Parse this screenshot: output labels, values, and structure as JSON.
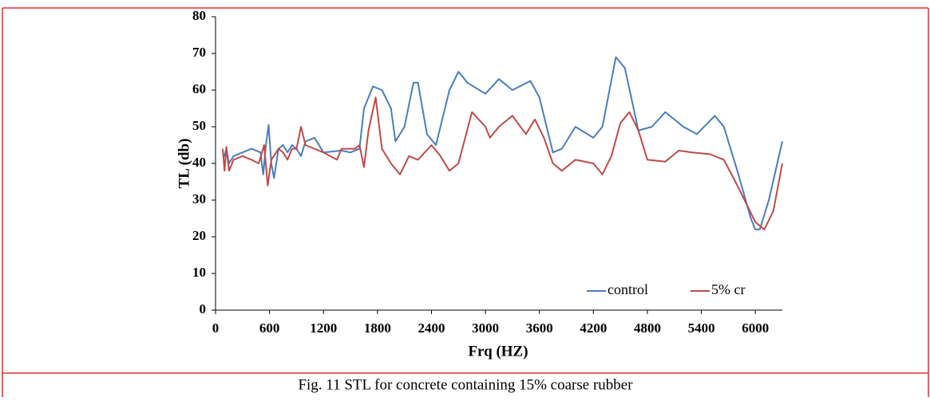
{
  "chart_data": {
    "type": "line",
    "caption": "Fig. 11 STL for concrete containing 15% coarse rubber",
    "xlabel": "Frq (HZ)",
    "ylabel": "TL (db)",
    "xlim": [
      0,
      6300
    ],
    "xticks": [
      0,
      600,
      1200,
      1800,
      2400,
      3000,
      3600,
      4200,
      4800,
      5400,
      6000
    ],
    "ylim": [
      0,
      80
    ],
    "yticks": [
      0,
      10,
      20,
      30,
      40,
      50,
      60,
      70,
      80
    ],
    "grid": false,
    "legend": "lower right",
    "series": [
      {
        "name": "control",
        "color": "#4a7ebb",
        "x": [
          80,
          100,
          120,
          150,
          200,
          300,
          400,
          500,
          530,
          560,
          590,
          620,
          650,
          700,
          750,
          800,
          850,
          900,
          950,
          1000,
          1100,
          1200,
          1400,
          1500,
          1600,
          1650,
          1750,
          1850,
          1950,
          2000,
          2100,
          2200,
          2250,
          2350,
          2450,
          2600,
          2700,
          2800,
          3000,
          3150,
          3300,
          3500,
          3600,
          3750,
          3850,
          4000,
          4200,
          4300,
          4450,
          4550,
          4700,
          4850,
          5000,
          5200,
          5350,
          5550,
          5650,
          5800,
          5950,
          6000,
          6050,
          6150,
          6300
        ],
        "values": [
          43,
          42,
          44,
          40,
          42,
          43,
          44,
          43,
          37,
          45,
          50.5,
          40,
          36,
          44,
          45,
          43,
          45,
          44,
          42,
          46,
          47,
          43,
          43.5,
          43,
          44,
          55,
          61,
          60,
          55,
          46,
          50,
          62,
          62,
          48,
          45,
          60,
          65,
          62,
          59,
          63,
          60,
          62.5,
          58,
          43,
          44,
          50,
          47,
          50,
          69,
          66,
          49,
          50,
          54,
          50,
          48,
          53,
          50,
          38,
          25,
          22,
          22,
          30,
          46
        ]
      },
      {
        "name": "5% cr",
        "color": "#be4b48",
        "x": [
          80,
          100,
          120,
          150,
          200,
          300,
          400,
          480,
          540,
          580,
          620,
          700,
          750,
          800,
          850,
          900,
          950,
          1000,
          1200,
          1350,
          1400,
          1550,
          1600,
          1650,
          1700,
          1780,
          1850,
          1950,
          2050,
          2150,
          2250,
          2400,
          2500,
          2600,
          2700,
          2850,
          3000,
          3050,
          3150,
          3300,
          3450,
          3550,
          3650,
          3750,
          3850,
          4000,
          4200,
          4300,
          4400,
          4500,
          4600,
          4700,
          4800,
          5000,
          5150,
          5300,
          5500,
          5650,
          5800,
          6000,
          6100,
          6200,
          6300
        ],
        "values": [
          44,
          38,
          44.5,
          38,
          41,
          42,
          41,
          40,
          45,
          34,
          41,
          44,
          43,
          41,
          44,
          44,
          50,
          45,
          43,
          41,
          44,
          44,
          45,
          39,
          49,
          58,
          44,
          40,
          37,
          42,
          41,
          45,
          42,
          38,
          40,
          54,
          50,
          47,
          50,
          53,
          48,
          52,
          47,
          40,
          38,
          41,
          40,
          37,
          42,
          51,
          54,
          49,
          41,
          40.5,
          43.5,
          43,
          42.5,
          41,
          34,
          24,
          22,
          27,
          40
        ]
      }
    ]
  }
}
